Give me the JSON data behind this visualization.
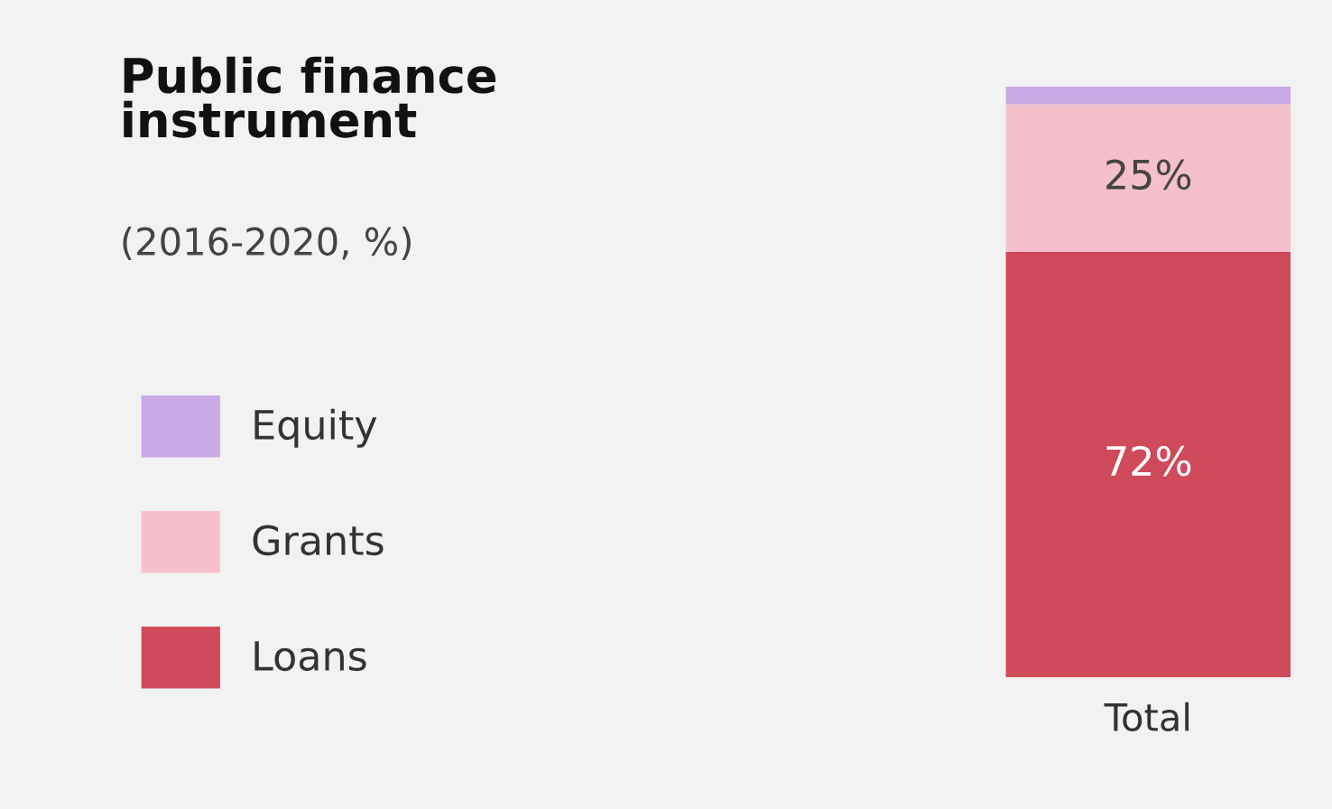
{
  "chart_data": {
    "type": "bar",
    "title": "Public finance\ninstrument",
    "subtitle": "(2016-2020, %)",
    "categories": [
      "Total"
    ],
    "stacked": true,
    "legend": "left",
    "series": [
      {
        "name": "Loans",
        "color": "#cf4a5a",
        "values": [
          72
        ],
        "value_labels": [
          "72%"
        ]
      },
      {
        "name": "Grants",
        "color": "#f5c0cb",
        "values": [
          25
        ],
        "value_labels": [
          "25%"
        ]
      },
      {
        "name": "Equity",
        "color": "#c9a9e6",
        "values": [
          3
        ],
        "value_labels": [
          null
        ]
      }
    ]
  }
}
